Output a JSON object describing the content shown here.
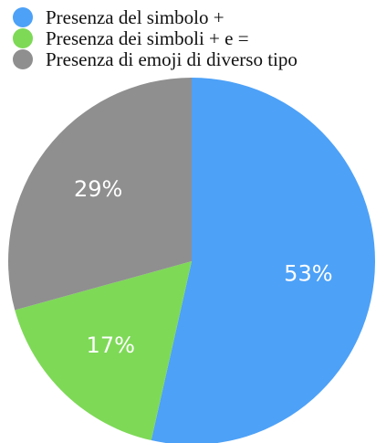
{
  "chart_data": {
    "type": "pie",
    "categories": [
      "Presenza del simbolo +",
      "Presenza dei simboli + e =",
      "Presenza di emoji di diverso tipo"
    ],
    "values": [
      53,
      17,
      29
    ],
    "value_labels": [
      "53%",
      "17%",
      "29%"
    ],
    "colors": [
      "#4da1f7",
      "#7ed957",
      "#8f8f8f"
    ],
    "legend_position": "top-left"
  }
}
